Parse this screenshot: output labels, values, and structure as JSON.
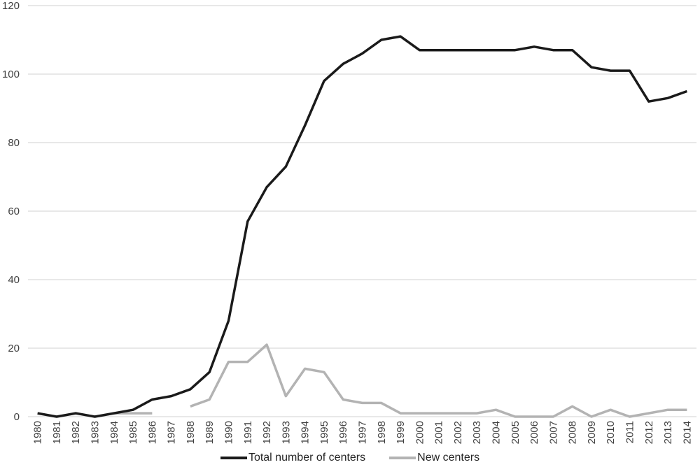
{
  "chart_data": {
    "type": "line",
    "title": "",
    "xlabel": "",
    "ylabel": "",
    "ylim": [
      0,
      120
    ],
    "yticks": [
      0,
      20,
      40,
      60,
      80,
      100,
      120
    ],
    "grid": true,
    "legend_position": "bottom",
    "x": [
      "1980",
      "1981",
      "1982",
      "1983",
      "1984",
      "1985",
      "1986",
      "1987",
      "1988",
      "1989",
      "1990",
      "1991",
      "1992",
      "1993",
      "1994",
      "1995",
      "1996",
      "1997",
      "1998",
      "1999",
      "2000",
      "2001",
      "2002",
      "2003",
      "2004",
      "2005",
      "2006",
      "2007",
      "2008",
      "2009",
      "2010",
      "2011",
      "2012",
      "2013",
      "2014"
    ],
    "series": [
      {
        "name": "Total number of centers",
        "color": "#1a1a1a",
        "values": [
          1,
          0,
          1,
          0,
          1,
          2,
          5,
          6,
          8,
          13,
          28,
          57,
          67,
          73,
          85,
          98,
          103,
          106,
          110,
          111,
          107,
          107,
          107,
          107,
          107,
          107,
          108,
          107,
          107,
          102,
          101,
          101,
          92,
          93,
          95
        ]
      },
      {
        "name": "New centers",
        "color": "#b3b3b3",
        "values": [
          null,
          null,
          null,
          null,
          1,
          1,
          1,
          null,
          3,
          5,
          16,
          16,
          21,
          6,
          14,
          13,
          5,
          4,
          4,
          1,
          1,
          1,
          1,
          1,
          2,
          0,
          0,
          0,
          3,
          0,
          2,
          0,
          1,
          2,
          2
        ]
      }
    ]
  },
  "legend": {
    "items": [
      {
        "label": "Total number of centers",
        "color": "#1a1a1a"
      },
      {
        "label": "New centers",
        "color": "#b3b3b3"
      }
    ]
  }
}
